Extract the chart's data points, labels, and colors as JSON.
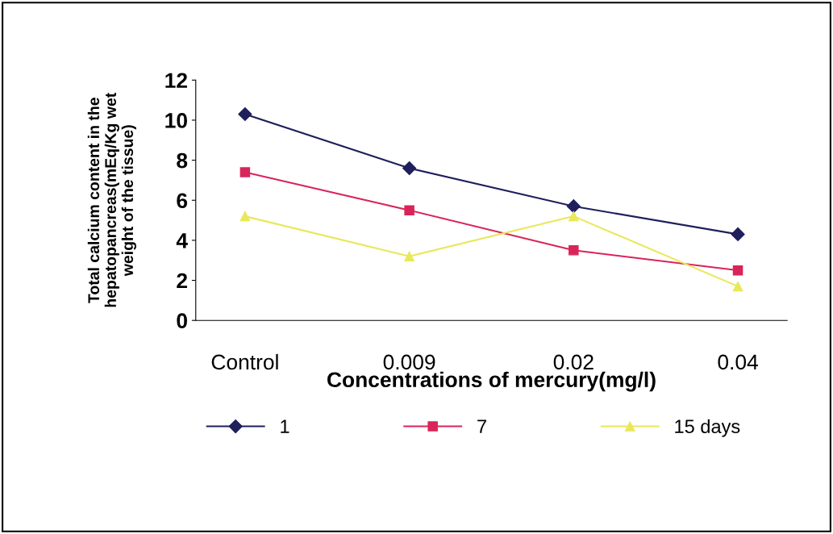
{
  "chart_data": {
    "type": "line",
    "xlabel": "Concentrations of mercury(mg/l)",
    "ylabel": "Total calcium content in the\nhepatopancreas(mEq/Kg wet\nweight of the tissue)",
    "categories": [
      "Control",
      "0.009",
      "0.02",
      "0.04"
    ],
    "series": [
      {
        "name": "1",
        "color": "#1f1f5c",
        "marker": "diamond",
        "values": [
          10.3,
          7.6,
          5.7,
          4.3
        ]
      },
      {
        "name": "7",
        "color": "#d9245a",
        "marker": "square",
        "values": [
          7.4,
          5.5,
          3.5,
          2.5
        ]
      },
      {
        "name": "15 days",
        "color": "#e8e85a",
        "marker": "triangle",
        "values": [
          5.2,
          3.2,
          5.2,
          1.7
        ]
      }
    ],
    "ylim": [
      0,
      12
    ],
    "yticks": [
      0,
      2,
      4,
      6,
      8,
      10,
      12
    ],
    "grid": false,
    "legend": "bottom",
    "line_style": "solid"
  }
}
